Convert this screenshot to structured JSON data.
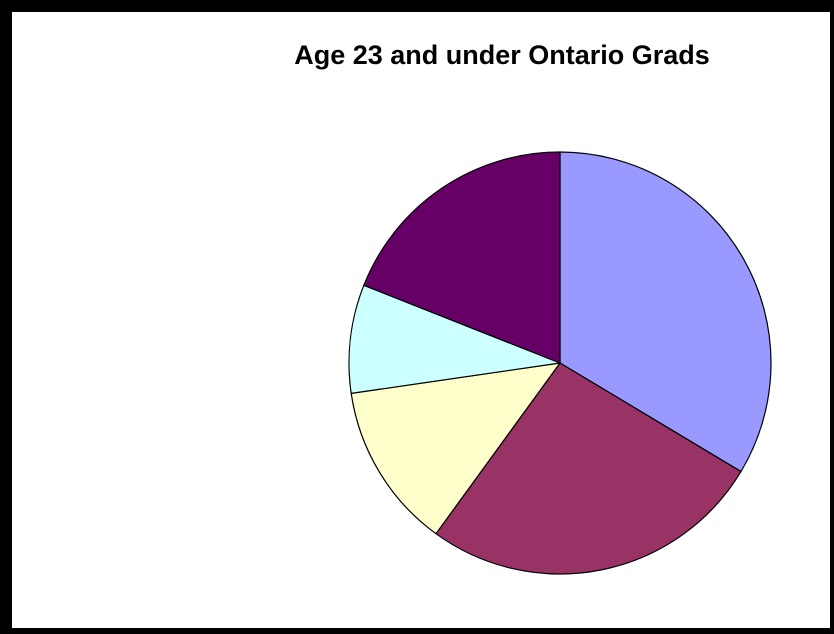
{
  "chart_data": {
    "type": "pie",
    "title": "Age 23 and under Ontario Grads",
    "start_angle_deg": 0,
    "direction": "clockwise",
    "slices": [
      {
        "value": 33.6,
        "color": "#9999ff"
      },
      {
        "value": 26.4,
        "color": "#993366"
      },
      {
        "value": 12.7,
        "color": "#ffffcc"
      },
      {
        "value": 8.3,
        "color": "#ccffff"
      },
      {
        "value": 19.0,
        "color": "#660066"
      }
    ],
    "legend": "none",
    "border_color": "#000000",
    "slice_stroke": "#000000"
  }
}
